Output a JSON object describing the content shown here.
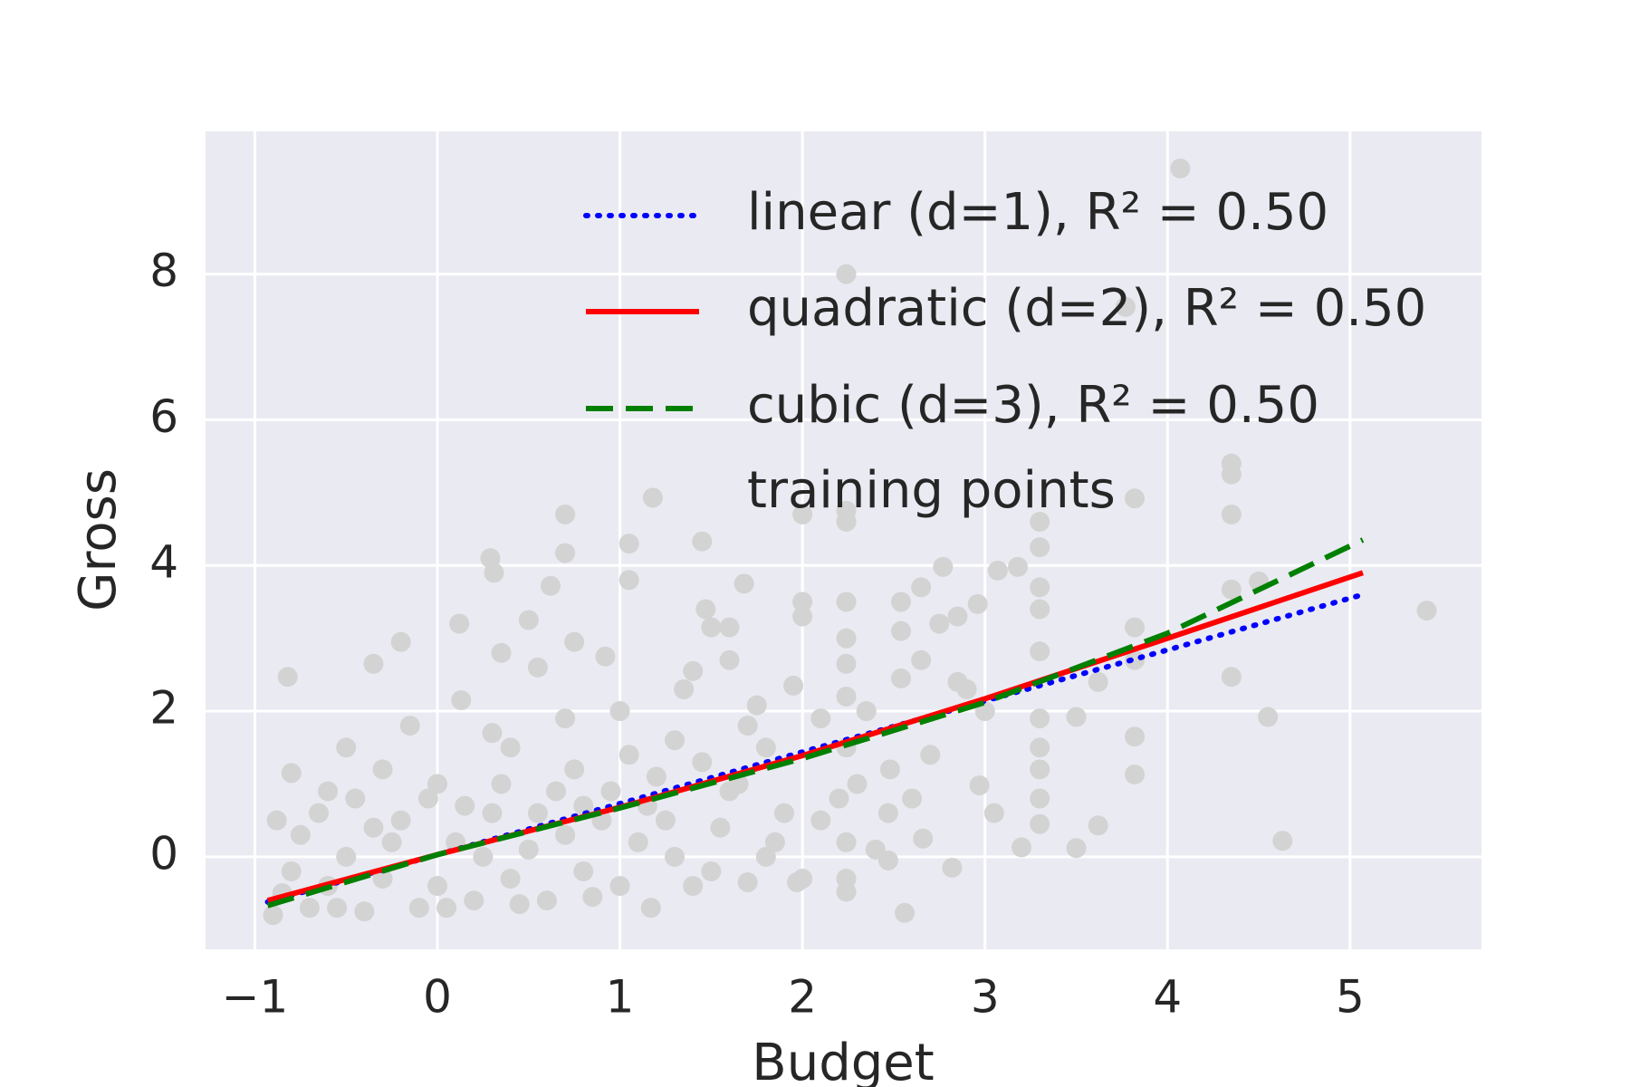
{
  "chart_data": {
    "type": "scatter",
    "xlabel": "Budget",
    "ylabel": "Gross",
    "xlim": [
      -1.27,
      5.72
    ],
    "ylim": [
      -1.27,
      9.96
    ],
    "xticks": [
      {
        "value": -1,
        "label": "−1"
      },
      0,
      1,
      2,
      3,
      4,
      5
    ],
    "yticks": [
      0,
      2,
      4,
      6,
      8
    ],
    "grid": true,
    "legend": "upper right",
    "series": [
      {
        "name": "linear (d=1), R² = 0.50",
        "color": "#0000ff",
        "linestyle": "dotted",
        "x": [
          -0.93,
          0,
          1,
          2,
          3,
          4,
          5.07
        ],
        "values": [
          -0.62,
          0.03,
          0.73,
          1.44,
          2.14,
          2.84,
          3.6
        ]
      },
      {
        "name": "quadratic (d=2), R² = 0.50",
        "color": "#ff0000",
        "linestyle": "solid",
        "x": [
          -0.93,
          0,
          1,
          2,
          3,
          4,
          5.07
        ],
        "values": [
          -0.6,
          0.03,
          0.68,
          1.39,
          2.17,
          3.0,
          3.9
        ]
      },
      {
        "name": "cubic (d=3), R² = 0.50",
        "color": "#008000",
        "linestyle": "dashed",
        "x": [
          -0.93,
          0,
          1,
          2,
          3,
          4,
          5.07
        ],
        "values": [
          -0.67,
          0.03,
          0.67,
          1.35,
          2.12,
          3.07,
          4.35
        ]
      },
      {
        "name": "training points",
        "color": "#d3d3d3",
        "x": [
          4.07,
          2.24,
          5.42,
          4.63,
          4.55,
          4.35,
          4.35,
          4.35,
          4.35,
          4.35,
          4.5,
          3.82,
          3.82,
          3.82,
          3.82,
          3.82,
          3.3,
          3.3,
          3.3,
          3.3,
          3.3,
          3.3,
          3.3,
          3.3,
          3.3,
          3.3,
          3.5,
          3.5,
          3.62,
          3.62,
          3.77,
          2.24,
          2.24,
          2.24,
          2.24,
          2.24,
          2.24,
          2.24,
          2.24,
          2.0,
          2.0,
          2.0,
          2.24,
          2.24,
          1.18,
          1.05,
          1.05,
          0.7,
          0.7,
          0.62,
          0.29,
          0.31,
          1.45,
          0.12,
          -0.35,
          -0.2,
          -0.82,
          0.35,
          0.5,
          0.75,
          1.47,
          1.5,
          1.6,
          1.68,
          2.77,
          2.65,
          2.96,
          3.07,
          3.18,
          2.85,
          2.75,
          2.54,
          2.54,
          2.54,
          2.65,
          2.56,
          2.48,
          2.85,
          2.9,
          3.0,
          2.97,
          2.66,
          2.82,
          3.05,
          3.2,
          2.47,
          2.47,
          1.95,
          1.75,
          1.6,
          1.4,
          1.35,
          0.55,
          0.92,
          -0.15,
          0.13,
          0.3,
          0.7,
          1.0,
          1.3,
          1.8,
          2.1,
          -0.5,
          -0.8,
          -0.6,
          -0.3,
          0,
          0.4,
          0.8,
          1.2,
          1.6,
          1.9,
          2.3,
          2.7,
          -0.9,
          -0.85,
          -0.8,
          -0.75,
          -0.7,
          -0.6,
          -0.5,
          -0.4,
          -0.3,
          -0.2,
          -0.1,
          0,
          0.1,
          0.2,
          0.3,
          0.4,
          0.5,
          0.6,
          0.7,
          0.8,
          0.9,
          1.0,
          1.1,
          1.17,
          1.3,
          1.4,
          1.55,
          1.7,
          1.85,
          1.97,
          2.1,
          -0.88,
          -0.65,
          -0.45,
          -0.25,
          -0.05,
          0.15,
          0.35,
          0.55,
          0.75,
          0.95,
          1.15,
          1.45,
          1.65,
          1.8,
          -0.55,
          -0.35,
          0.05,
          0.25,
          0.45,
          0.65,
          0.85,
          1.05,
          1.25,
          1.5,
          2.0,
          2.2,
          2.4,
          2.6,
          2.35,
          1.7
        ],
        "values": [
          9.45,
          8.0,
          3.38,
          0.22,
          1.92,
          5.4,
          5.25,
          4.7,
          3.67,
          2.47,
          3.78,
          4.92,
          3.15,
          1.65,
          1.13,
          2.7,
          4.6,
          4.25,
          3.7,
          3.4,
          2.82,
          1.9,
          1.5,
          1.2,
          0.8,
          0.45,
          1.92,
          0.12,
          2.4,
          0.43,
          7.55,
          3.5,
          3.0,
          2.65,
          2.2,
          1.5,
          0.2,
          -0.3,
          -0.48,
          4.7,
          3.5,
          3.3,
          4.6,
          4.75,
          4.93,
          4.3,
          3.8,
          4.7,
          4.17,
          3.72,
          4.1,
          3.9,
          4.33,
          3.2,
          2.65,
          2.95,
          2.47,
          2.8,
          3.25,
          2.95,
          3.4,
          3.15,
          3.15,
          3.75,
          3.98,
          3.7,
          3.47,
          3.93,
          3.98,
          3.3,
          3.2,
          3.5,
          3.1,
          2.45,
          2.7,
          -0.77,
          1.2,
          2.4,
          2.3,
          2.0,
          0.98,
          0.25,
          -0.15,
          0.6,
          0.13,
          0.6,
          -0.05,
          2.35,
          2.08,
          2.7,
          2.55,
          2.3,
          2.6,
          2.75,
          1.8,
          2.15,
          1.7,
          1.9,
          2.0,
          1.6,
          1.5,
          1.9,
          1.5,
          1.15,
          0.9,
          1.2,
          1.0,
          1.5,
          0.7,
          1.1,
          0.9,
          0.6,
          1.0,
          1.4,
          -0.8,
          -0.5,
          -0.2,
          0.3,
          -0.7,
          -0.4,
          0.0,
          -0.75,
          -0.3,
          0.5,
          -0.7,
          -0.4,
          0.2,
          -0.6,
          0.6,
          -0.3,
          0.1,
          -0.6,
          0.3,
          -0.2,
          0.5,
          -0.4,
          0.2,
          -0.7,
          0.0,
          -0.4,
          0.4,
          -0.35,
          0.2,
          -0.35,
          0.5,
          0.5,
          0.6,
          0.8,
          0.2,
          0.8,
          0.7,
          1.0,
          0.6,
          1.2,
          0.9,
          0.7,
          1.3,
          1.0,
          0.0,
          -0.7,
          0.4,
          -0.7,
          0.0,
          -0.65,
          0.9,
          -0.55,
          1.4,
          0.5,
          -0.2,
          -0.3,
          0.8,
          0.1,
          0.8,
          2.0,
          1.8
        ]
      }
    ]
  }
}
